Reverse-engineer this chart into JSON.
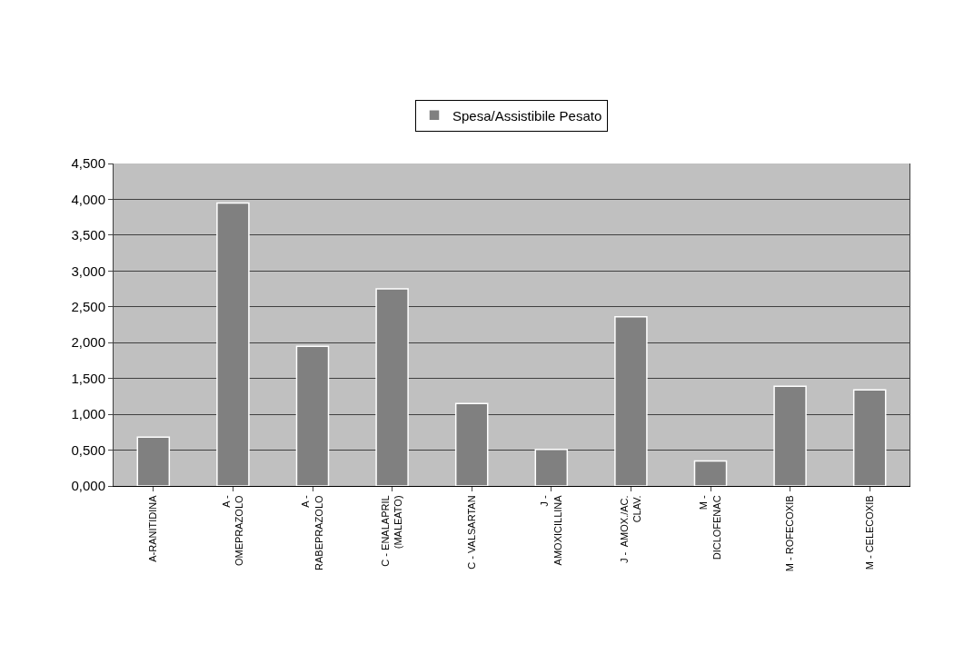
{
  "chart_data": {
    "type": "bar",
    "categories": [
      "A-RANITIDINA",
      "A -\nOMEPRAZOLO",
      "A -\nRABEPRAZOLO",
      "C - ENALAPRIL\n(MALEATO)",
      "C - VALSARTAN",
      "J -\nAMOXICILLINA",
      "J -  AMOX./AC.\nCLAV.",
      "M -\nDICLOFENAC",
      "M - ROFECOXIB",
      "M - CELECOXIB"
    ],
    "series": [
      {
        "name": "Spesa/Assistibile Pesato",
        "color": "#808080",
        "values": [
          0.68,
          3.95,
          1.95,
          2.75,
          1.15,
          0.51,
          2.36,
          0.35,
          1.39,
          1.34
        ]
      }
    ],
    "ylim": [
      0,
      4.5
    ],
    "yticks": [
      {
        "value": 0,
        "label": "0,000"
      },
      {
        "value": 0.5,
        "label": "0,500"
      },
      {
        "value": 1,
        "label": "1,000"
      },
      {
        "value": 1.5,
        "label": "1,500"
      },
      {
        "value": 2,
        "label": "2,000"
      },
      {
        "value": 2.5,
        "label": "2,500"
      },
      {
        "value": 3,
        "label": "3,000"
      },
      {
        "value": 3.5,
        "label": "3,500"
      },
      {
        "value": 4,
        "label": "4,000"
      },
      {
        "value": 4.5,
        "label": "4,500"
      }
    ],
    "grid": "y",
    "legend": "top"
  }
}
